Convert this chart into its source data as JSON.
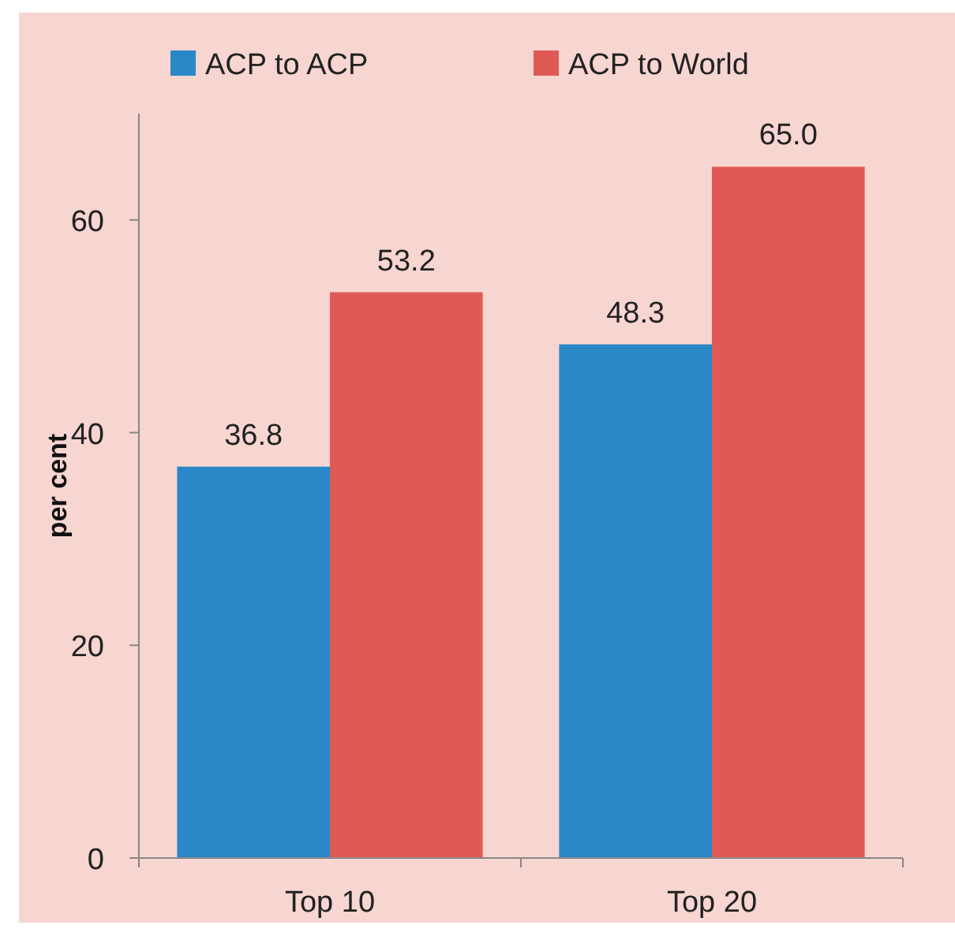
{
  "chart_data": {
    "type": "bar",
    "categories": [
      "Top 10",
      "Top 20"
    ],
    "series": [
      {
        "name": "ACP to ACP",
        "color": "#2a87c8",
        "values": [
          36.8,
          48.3
        ],
        "value_labels": [
          "36.8",
          "48.3"
        ]
      },
      {
        "name": "ACP to World",
        "color": "#e05a55",
        "values": [
          53.2,
          65.0
        ],
        "value_labels": [
          "53.2",
          "65.0"
        ]
      }
    ],
    "ylabel": "per cent",
    "ylim": [
      0,
      70
    ],
    "yticks": [
      0,
      20,
      40,
      60
    ],
    "legend": "top",
    "grid": false
  }
}
